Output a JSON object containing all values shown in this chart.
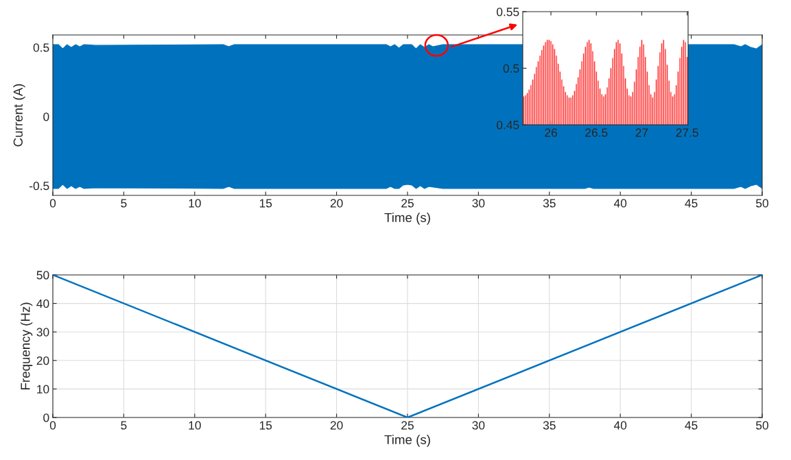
{
  "chart_data": [
    {
      "type": "area",
      "xlabel": "Time (s)",
      "ylabel": "Current (A)",
      "xlim": [
        0,
        50
      ],
      "ylim": [
        -0.57,
        0.59
      ],
      "xticks": [
        0,
        5,
        10,
        15,
        20,
        25,
        30,
        35,
        40,
        45,
        50
      ],
      "yticks": [
        -0.5,
        0,
        0.5
      ],
      "grid": false,
      "series": [
        {
          "color": "#0072bd",
          "x": [
            0,
            0.4,
            0.7,
            1.0,
            1.3,
            1.6,
            1.9,
            2.2,
            3,
            12,
            12.4,
            12.8,
            23.5,
            23.8,
            24.1,
            24.4,
            24.7,
            25,
            25.3,
            25.6,
            25.9,
            26.2,
            26.5,
            26.8,
            27.5,
            48,
            48.5,
            48.8,
            49.2,
            49.6,
            50
          ],
          "values": [
            0.52,
            0.52,
            0.49,
            0.52,
            0.5,
            0.52,
            0.505,
            0.52,
            0.515,
            0.52,
            0.505,
            0.52,
            0.52,
            0.505,
            0.52,
            0.495,
            0.52,
            0.52,
            0.52,
            0.49,
            0.52,
            0.5,
            0.52,
            0.505,
            0.52,
            0.52,
            0.505,
            0.52,
            0.5,
            0.49,
            0.52
          ]
        },
        {
          "color": "#0072bd",
          "x": [
            0,
            0.4,
            0.7,
            1.0,
            1.3,
            1.6,
            1.9,
            2.2,
            3,
            12,
            12.4,
            12.8,
            23.5,
            23.8,
            24.1,
            24.4,
            24.7,
            25,
            25.3,
            25.6,
            25.9,
            26.2,
            26.5,
            27.5,
            37.5,
            37.8,
            38.1,
            48,
            48.5,
            48.8,
            49.2,
            49.6,
            50
          ],
          "values": [
            -0.52,
            -0.52,
            -0.49,
            -0.52,
            -0.5,
            -0.52,
            -0.505,
            -0.52,
            -0.515,
            -0.52,
            -0.505,
            -0.52,
            -0.52,
            -0.505,
            -0.52,
            -0.52,
            -0.495,
            -0.49,
            -0.495,
            -0.52,
            -0.5,
            -0.52,
            -0.505,
            -0.52,
            -0.52,
            -0.51,
            -0.52,
            -0.52,
            -0.505,
            -0.52,
            -0.5,
            -0.49,
            -0.52
          ]
        }
      ]
    },
    {
      "type": "bar",
      "xlim": [
        25.69,
        27.51
      ],
      "ylim": [
        0.45,
        0.55
      ],
      "xticks": [
        26,
        26.5,
        27,
        27.5
      ],
      "yticks": [
        0.45,
        0.5,
        0.55
      ],
      "grid": false,
      "series": [
        {
          "color": "#ff0000",
          "x": [
            25.7,
            25.72,
            25.74,
            25.76,
            25.78,
            25.8,
            25.82,
            25.84,
            25.86,
            25.88,
            25.9,
            25.92,
            25.94,
            25.96,
            25.98,
            26.0,
            26.02,
            26.04,
            26.06,
            26.08,
            26.1,
            26.12,
            26.14,
            26.16,
            26.18,
            26.2,
            26.22,
            26.24,
            26.26,
            26.28,
            26.3,
            26.32,
            26.34,
            26.36,
            26.38,
            26.4,
            26.42,
            26.44,
            26.46,
            26.48,
            26.5,
            26.52,
            26.54,
            26.56,
            26.58,
            26.6,
            26.62,
            26.64,
            26.66,
            26.68,
            26.7,
            26.72,
            26.74,
            26.76,
            26.78,
            26.8,
            26.82,
            26.84,
            26.86,
            26.88,
            26.9,
            26.92,
            26.94,
            26.96,
            26.98,
            27.0,
            27.02,
            27.04,
            27.06,
            27.08,
            27.1,
            27.12,
            27.14,
            27.16,
            27.18,
            27.2,
            27.22,
            27.24,
            27.26,
            27.28,
            27.3,
            27.32,
            27.34,
            27.36,
            27.38,
            27.4,
            27.42,
            27.44,
            27.46,
            27.48,
            27.5
          ],
          "values": [
            0.475,
            0.476,
            0.478,
            0.481,
            0.485,
            0.49,
            0.495,
            0.501,
            0.506,
            0.511,
            0.516,
            0.52,
            0.523,
            0.525,
            0.525,
            0.524,
            0.521,
            0.517,
            0.511,
            0.504,
            0.497,
            0.49,
            0.484,
            0.479,
            0.476,
            0.474,
            0.474,
            0.476,
            0.48,
            0.486,
            0.492,
            0.499,
            0.506,
            0.513,
            0.519,
            0.523,
            0.525,
            0.522,
            0.515,
            0.506,
            0.497,
            0.489,
            0.482,
            0.477,
            0.475,
            0.477,
            0.483,
            0.491,
            0.5,
            0.509,
            0.517,
            0.523,
            0.525,
            0.522,
            0.513,
            0.502,
            0.491,
            0.482,
            0.476,
            0.475,
            0.479,
            0.488,
            0.499,
            0.51,
            0.519,
            0.525,
            0.521,
            0.51,
            0.497,
            0.485,
            0.477,
            0.474,
            0.479,
            0.49,
            0.502,
            0.514,
            0.522,
            0.525,
            0.517,
            0.503,
            0.489,
            0.479,
            0.475,
            0.477,
            0.485,
            0.497,
            0.509,
            0.519,
            0.525,
            0.523,
            0.51
          ]
        }
      ]
    },
    {
      "type": "line",
      "xlabel": "Time (s)",
      "ylabel": "Frequency (Hz)",
      "xlim": [
        0,
        50
      ],
      "ylim": [
        0,
        50
      ],
      "xticks": [
        0,
        5,
        10,
        15,
        20,
        25,
        30,
        35,
        40,
        45,
        50
      ],
      "yticks": [
        0,
        10,
        20,
        30,
        40,
        50
      ],
      "grid": true,
      "marker": "none",
      "line_style": "solid",
      "series": [
        {
          "color": "#0072bd",
          "x": [
            0,
            25,
            50
          ],
          "values": [
            50,
            0,
            50
          ]
        }
      ]
    }
  ]
}
